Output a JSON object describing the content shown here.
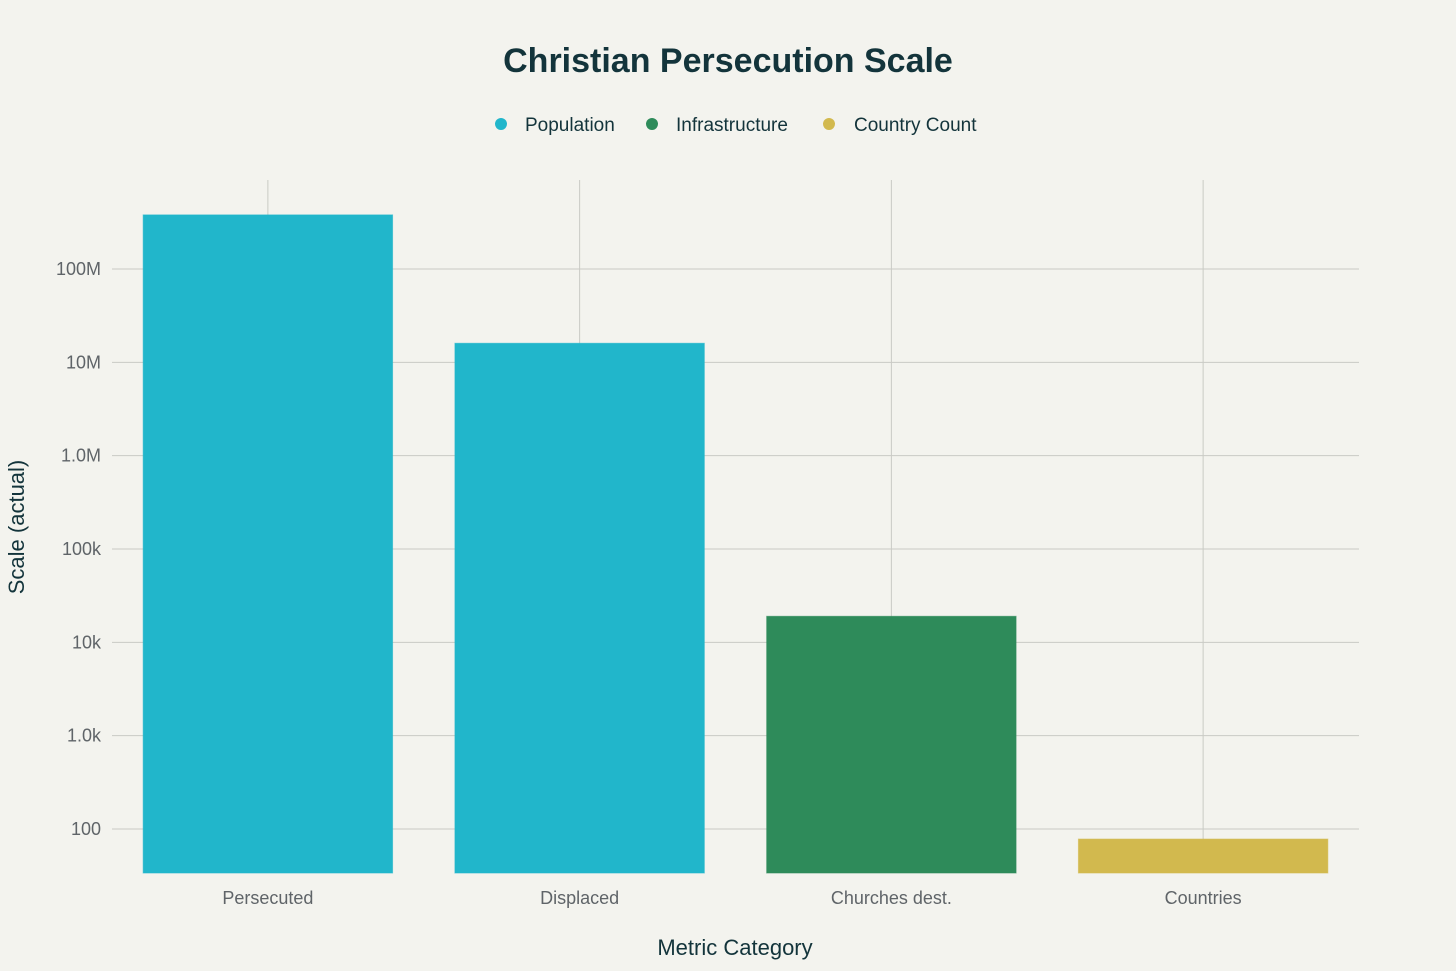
{
  "chart_data": {
    "type": "bar",
    "title": "Christian Persecution Scale",
    "xlabel": "Metric Category",
    "ylabel": "Scale (actual)",
    "y_scale": "log",
    "ylim": [
      30,
      800000000
    ],
    "grid": true,
    "legend_position": "top-center",
    "legend": [
      {
        "name": "Population",
        "color": "#21b6cb"
      },
      {
        "name": "Infrastructure",
        "color": "#2e8b5a"
      },
      {
        "name": "Country Count",
        "color": "#d2b94e"
      }
    ],
    "categories": [
      "Persecuted",
      "Displaced",
      "Churches dest.",
      "Countries"
    ],
    "bars": [
      {
        "category": "Persecuted",
        "value": 380000000,
        "group": "Population",
        "color": "#21b6cb"
      },
      {
        "category": "Displaced",
        "value": 16000000,
        "group": "Population",
        "color": "#21b6cb"
      },
      {
        "category": "Churches dest.",
        "value": 19000,
        "group": "Infrastructure",
        "color": "#2e8b5a"
      },
      {
        "category": "Countries",
        "value": 78,
        "group": "Country Count",
        "color": "#d2b94e"
      }
    ],
    "y_ticks": [
      {
        "value": 100,
        "label": "100"
      },
      {
        "value": 1000,
        "label": "1.0k"
      },
      {
        "value": 10000,
        "label": "10k"
      },
      {
        "value": 100000,
        "label": "100k"
      },
      {
        "value": 1000000,
        "label": "1.0M"
      },
      {
        "value": 10000000,
        "label": "10M"
      },
      {
        "value": 100000000,
        "label": "100M"
      }
    ]
  }
}
